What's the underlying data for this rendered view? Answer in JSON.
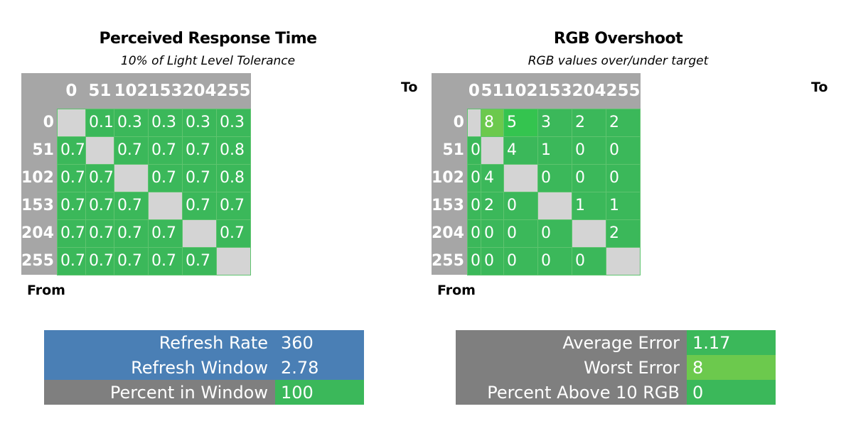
{
  "colors": {
    "cell_green": "#3bb85a",
    "diag_gray": "#d4d4d4",
    "header_gray": "#a6a6a6",
    "summary_blue": "#4a7fb5",
    "summary_gray": "#7f7f7f"
  },
  "chart_data": [
    {
      "type": "heatmap",
      "title": "Perceived Response Time",
      "subtitle": "10% of Light Level Tolerance",
      "xlabel": "To",
      "ylabel": "From",
      "columns": [
        "0",
        "51",
        "102",
        "153",
        "204",
        "255"
      ],
      "rows": [
        "0",
        "51",
        "102",
        "153",
        "204",
        "255"
      ],
      "values": [
        [
          null,
          "0.1",
          "0.3",
          "0.3",
          "0.3",
          "0.3"
        ],
        [
          "0.7",
          null,
          "0.7",
          "0.7",
          "0.7",
          "0.8"
        ],
        [
          "0.7",
          "0.7",
          null,
          "0.7",
          "0.7",
          "0.8"
        ],
        [
          "0.7",
          "0.7",
          "0.7",
          null,
          "0.7",
          "0.7"
        ],
        [
          "0.7",
          "0.7",
          "0.7",
          "0.7",
          null,
          "0.7"
        ],
        [
          "0.7",
          "0.7",
          "0.7",
          "0.7",
          "0.7",
          null
        ]
      ]
    },
    {
      "type": "heatmap",
      "title": "RGB Overshoot",
      "subtitle": "RGB values over/under target",
      "xlabel": "To",
      "ylabel": "From",
      "columns": [
        "0",
        "51",
        "102",
        "153",
        "204",
        "255"
      ],
      "rows": [
        "0",
        "51",
        "102",
        "153",
        "204",
        "255"
      ],
      "values": [
        [
          null,
          "8",
          "5",
          "3",
          "2",
          "2"
        ],
        [
          "0",
          null,
          "4",
          "1",
          "0",
          "0"
        ],
        [
          "0",
          "4",
          null,
          "0",
          "0",
          "0"
        ],
        [
          "0",
          "2",
          "0",
          null,
          "1",
          "1"
        ],
        [
          "0",
          "0",
          "0",
          "0",
          null,
          "2"
        ],
        [
          "0",
          "0",
          "0",
          "0",
          "0",
          null
        ]
      ],
      "highlight": {
        "0-1": "#6cc94d",
        "0-2": "#34c44f"
      }
    }
  ],
  "summary_left": [
    {
      "label": "Refresh Rate",
      "value": "360",
      "style": "blue"
    },
    {
      "label": "Refresh Window",
      "value": "2.78",
      "style": "blue"
    },
    {
      "label": "Percent in Window",
      "value": "100",
      "style": "gray"
    }
  ],
  "summary_right": [
    {
      "label": "Average Error",
      "value": "1.17",
      "valcolor": "#3bb85a"
    },
    {
      "label": "Worst Error",
      "value": "8",
      "valcolor": "#6cc94d"
    },
    {
      "label": "Percent Above 10 RGB",
      "value": "0",
      "valcolor": "#3bb85a"
    }
  ]
}
